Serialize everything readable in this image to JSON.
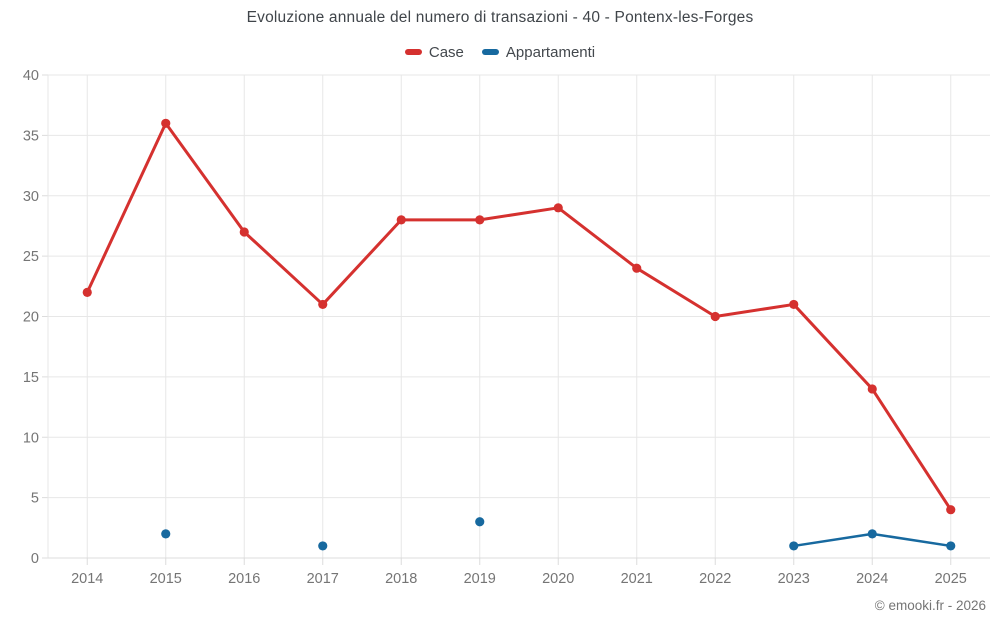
{
  "header": {
    "title": "Evoluzione annuale del numero di transazioni - 40 - Pontenx-les-Forges"
  },
  "legend": {
    "items": [
      {
        "label": "Case",
        "color": "#d5312f"
      },
      {
        "label": "Appartamenti",
        "color": "#17699f"
      }
    ]
  },
  "footer": {
    "attribution": "© emooki.fr - 2026"
  },
  "colors": {
    "grid": "#e7e7e7",
    "axis": "#dcdcdc",
    "tick_label": "#757575",
    "title": "#40454a"
  },
  "chart_data": {
    "type": "line",
    "title": "Evoluzione annuale del numero di transazioni - 40 - Pontenx-les-Forges",
    "categories": [
      "2014",
      "2015",
      "2016",
      "2017",
      "2018",
      "2019",
      "2020",
      "2021",
      "2022",
      "2023",
      "2024",
      "2025"
    ],
    "series": [
      {
        "name": "Case",
        "color": "#d5312f",
        "values": [
          22,
          36,
          27,
          21,
          28,
          28,
          29,
          24,
          20,
          21,
          14,
          4
        ]
      },
      {
        "name": "Appartamenti",
        "color": "#17699f",
        "values": [
          null,
          2,
          null,
          1,
          null,
          3,
          null,
          null,
          null,
          1,
          2,
          1
        ]
      }
    ],
    "xlabel": "",
    "ylabel": "",
    "ylim": [
      0,
      40
    ],
    "yticks": [
      0,
      5,
      10,
      15,
      20,
      25,
      30,
      35,
      40
    ],
    "grid": true,
    "legend_position": "top",
    "marker": "circle"
  }
}
